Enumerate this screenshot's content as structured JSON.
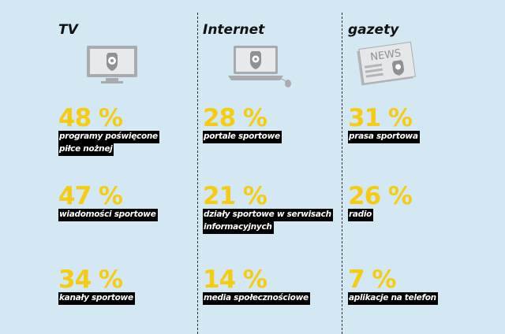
{
  "columns": [
    {
      "title": "TV",
      "icon": "tv-icon",
      "stats": [
        {
          "percent": "48 %",
          "label_lines": [
            "programy poświęcone",
            "piłce nożnej"
          ]
        },
        {
          "percent": "47 %",
          "label_lines": [
            "wiadomości sportowe"
          ]
        },
        {
          "percent": "34 %",
          "label_lines": [
            "kanały sportowe"
          ]
        }
      ]
    },
    {
      "title": "Internet",
      "icon": "laptop-icon",
      "stats": [
        {
          "percent": "28 %",
          "label_lines": [
            "portale sportowe"
          ]
        },
        {
          "percent": "21 %",
          "label_lines": [
            "działy sportowe w serwisach",
            "informacyjnych"
          ]
        },
        {
          "percent": "14 %",
          "label_lines": [
            "media społecznościowe"
          ]
        }
      ]
    },
    {
      "title": "gazety",
      "icon": "newspaper-icon",
      "newspaper_text": "NEWS",
      "stats": [
        {
          "percent": "31 %",
          "label_lines": [
            "prasa sportowa"
          ]
        },
        {
          "percent": "26 %",
          "label_lines": [
            "radio"
          ]
        },
        {
          "percent": "7 %",
          "label_lines": [
            "aplikacje na telefon"
          ]
        }
      ]
    }
  ],
  "colors": {
    "background": "#d4e8f4",
    "percent": "#f5cc12",
    "label_bg": "#000000",
    "label_text": "#ffffff"
  }
}
